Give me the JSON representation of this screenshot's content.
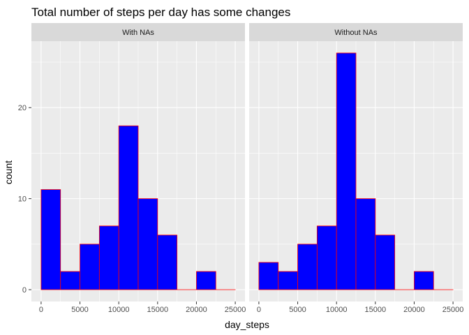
{
  "chart_data": {
    "type": "bar",
    "title": "Total number of steps per day has some changes",
    "xlabel": "day_steps",
    "ylabel": "count",
    "xlim": [
      -1250,
      26250
    ],
    "ylim": [
      -1.3,
      27.3
    ],
    "x_ticks": [
      0,
      5000,
      10000,
      15000,
      20000,
      25000
    ],
    "x_tick_labels": [
      "0",
      "5000",
      "10000",
      "15000",
      "20000",
      "25000"
    ],
    "y_ticks": [
      0,
      10,
      20
    ],
    "y_tick_labels": [
      "0",
      "10",
      "20"
    ],
    "bin_edges": [
      0,
      2500,
      5000,
      7500,
      10000,
      12500,
      15000,
      17500,
      20000,
      22500,
      25000
    ],
    "bar_fill": "#0000ff",
    "bar_outline": "#ff0000",
    "panel_background": "#ebebeb",
    "grid_color": "#ffffff",
    "strip_background": "#d9d9d9",
    "grid": true,
    "legend": "none",
    "panels": [
      {
        "name": "With NAs",
        "counts": [
          11,
          2,
          5,
          7,
          18,
          10,
          6,
          0,
          2,
          0
        ]
      },
      {
        "name": "Without NAs",
        "counts": [
          3,
          2,
          5,
          7,
          26,
          10,
          6,
          0,
          2,
          0
        ]
      }
    ]
  }
}
